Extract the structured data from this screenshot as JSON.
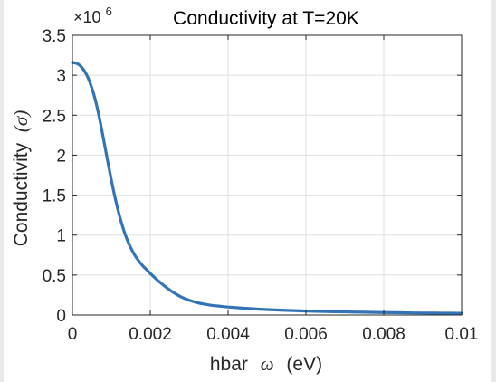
{
  "chart_data": {
    "type": "line",
    "title": "Conductivity at T=20K",
    "xlabel_text": "hbar",
    "xlabel_symbol": "ω",
    "xlabel_unit": "(eV)",
    "ylabel_text": "Conductivity",
    "ylabel_symbol": "(σ)",
    "y_exponent_prefix": "×10",
    "y_exponent_power": "6",
    "y_exponent_multiplier": 1000000,
    "xlim": [
      0,
      0.01
    ],
    "ylim": [
      0,
      3.5
    ],
    "xticks": [
      0,
      0.002,
      0.004,
      0.006,
      0.008,
      0.01
    ],
    "xtick_labels": [
      "0",
      "0.002",
      "0.004",
      "0.006",
      "0.008",
      "0.01"
    ],
    "yticks": [
      0,
      0.5,
      1,
      1.5,
      2,
      2.5,
      3,
      3.5
    ],
    "ytick_labels": [
      "0",
      "0.5",
      "1",
      "1.5",
      "2",
      "2.5",
      "3",
      "3.5"
    ],
    "grid": true,
    "line_color": "#3274b5",
    "series": [
      {
        "x": [
          0,
          0.0001,
          0.0002,
          0.0003,
          0.0004,
          0.0005,
          0.0006,
          0.0007,
          0.0008,
          0.0009,
          0.001,
          0.0011,
          0.0012,
          0.0013,
          0.0014,
          0.0015,
          0.0016,
          0.0017,
          0.0018,
          0.0019,
          0.002,
          0.0022,
          0.0024,
          0.0026,
          0.0028,
          0.003,
          0.0032,
          0.0034,
          0.0036,
          0.0038,
          0.004,
          0.0045,
          0.005,
          0.0055,
          0.006,
          0.0065,
          0.007,
          0.0075,
          0.008,
          0.0085,
          0.009,
          0.0095,
          0.01
        ],
        "y": [
          3.16,
          3.15,
          3.12,
          3.06,
          2.97,
          2.84,
          2.67,
          2.45,
          2.2,
          1.94,
          1.69,
          1.46,
          1.26,
          1.09,
          0.95,
          0.84,
          0.75,
          0.68,
          0.62,
          0.57,
          0.52,
          0.43,
          0.35,
          0.28,
          0.225,
          0.185,
          0.155,
          0.135,
          0.12,
          0.11,
          0.1,
          0.082,
          0.068,
          0.058,
          0.05,
          0.044,
          0.039,
          0.035,
          0.031,
          0.028,
          0.025,
          0.023,
          0.021
        ]
      }
    ]
  }
}
